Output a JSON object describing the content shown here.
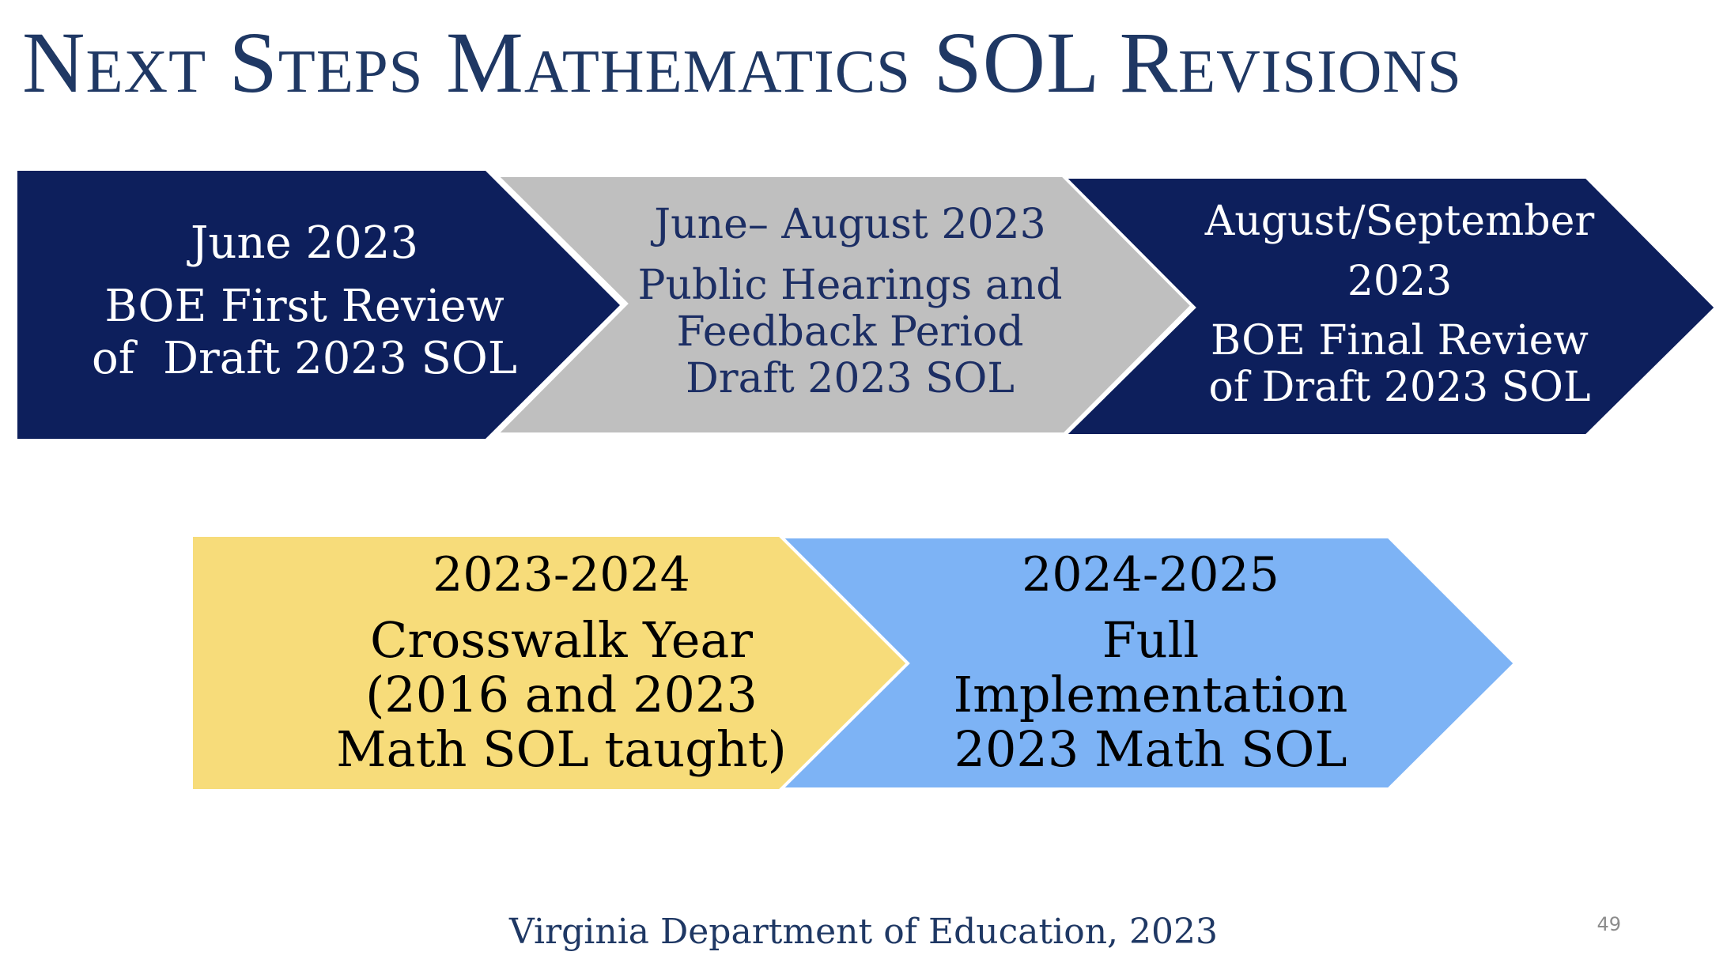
{
  "title": "Next Steps Mathematics SOL Revisions",
  "colors": {
    "title": "#1f3864",
    "navy_chevron": "#0d1f5c",
    "gray_chevron": "#bfbfbf",
    "yellow_chevron": "#f7dc7a",
    "blue_chevron": "#7db3f5"
  },
  "timeline": {
    "row1": [
      {
        "date": "June 2023",
        "lines": [
          "BOE First Review",
          "of  Draft 2023 SOL"
        ]
      },
      {
        "date": "June– August 2023",
        "lines": [
          "Public Hearings and",
          "Feedback Period",
          "Draft 2023 SOL"
        ]
      },
      {
        "date_lines": [
          "August/September",
          "2023"
        ],
        "lines": [
          "BOE Final Review",
          "of Draft 2023 SOL"
        ]
      }
    ],
    "row2": [
      {
        "date": "2023-2024",
        "lines": [
          "Crosswalk Year",
          "(2016 and 2023",
          "Math SOL taught)"
        ]
      },
      {
        "date": "2024-2025",
        "lines": [
          "Full",
          "Implementation",
          "2023 Math SOL"
        ]
      }
    ]
  },
  "footer": "Virginia Department of Education, 2023",
  "page_number": "49"
}
